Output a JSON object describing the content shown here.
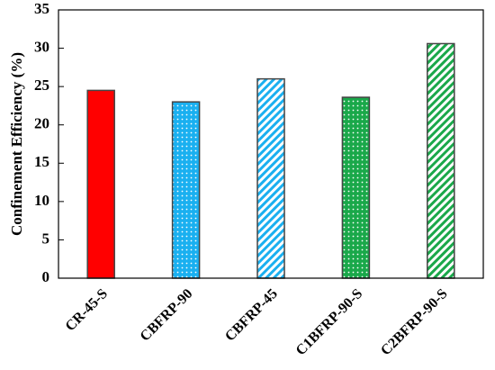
{
  "chart_data": {
    "type": "bar",
    "y_label": "Confinement Efficiency (%)",
    "categories": [
      "CR-45-S",
      "CBFRP-90",
      "CBFRP-45",
      "C1BFRP-90-S",
      "C2BFRP-90-S"
    ],
    "values": [
      24.5,
      23,
      26,
      23.6,
      30.6
    ],
    "colors": [
      "#ff0000",
      "#1ab0f0",
      "#1ab0f0",
      "#1aa84a",
      "#1aa84a"
    ],
    "patterns": [
      "solid",
      "dots",
      "hatch",
      "dots",
      "hatch"
    ],
    "ylim": [
      0,
      35
    ],
    "yticks": [
      0,
      5,
      10,
      15,
      20,
      25,
      30,
      35
    ],
    "grid": false
  }
}
